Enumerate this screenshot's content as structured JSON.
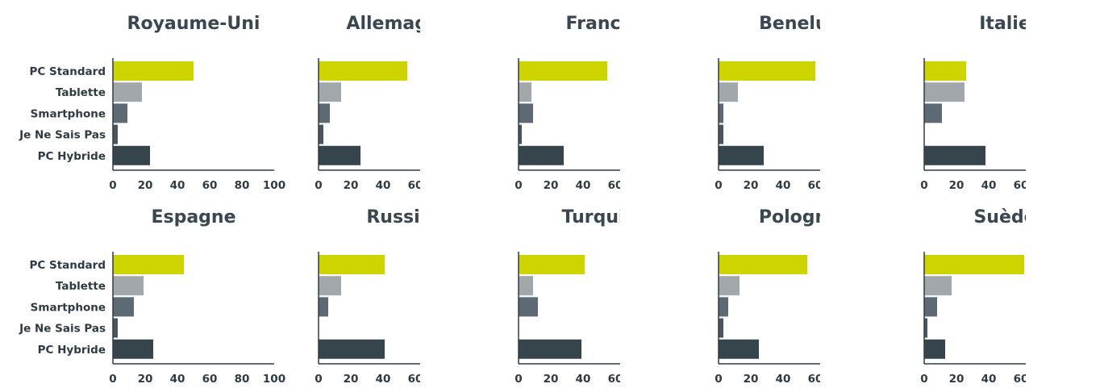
{
  "chart_data": {
    "type": "bar",
    "orientation": "horizontal",
    "categories": [
      "PC Standard",
      "Tablette",
      "Smartphone",
      "Je Ne Sais Pas",
      "PC Hybride"
    ],
    "category_colors": [
      "#cdd400",
      "#a2a7ab",
      "#5d6a73",
      "#4a565e",
      "#36444c"
    ],
    "xlim": [
      0,
      100
    ],
    "xticks": [
      "0",
      "20",
      "40",
      "60",
      "80",
      "100"
    ],
    "panels": [
      {
        "title": "Royaume-Uni",
        "values": [
          50,
          18,
          9,
          3,
          23
        ]
      },
      {
        "title": "Allemagne",
        "values": [
          55,
          14,
          7,
          3,
          26
        ]
      },
      {
        "title": "France",
        "values": [
          55,
          8,
          9,
          2,
          28
        ]
      },
      {
        "title": "Benelux",
        "values": [
          60,
          12,
          3,
          3,
          28
        ]
      },
      {
        "title": "Italie",
        "values": [
          26,
          25,
          11,
          0,
          38
        ]
      },
      {
        "title": "Espagne",
        "values": [
          44,
          19,
          13,
          3,
          25
        ]
      },
      {
        "title": "Russie",
        "values": [
          41,
          14,
          6,
          0,
          41
        ]
      },
      {
        "title": "Turquie",
        "values": [
          41,
          9,
          12,
          0,
          39
        ]
      },
      {
        "title": "Pologne",
        "values": [
          55,
          13,
          6,
          3,
          25
        ]
      },
      {
        "title": "Suède",
        "values": [
          62,
          17,
          8,
          2,
          13
        ]
      }
    ]
  }
}
